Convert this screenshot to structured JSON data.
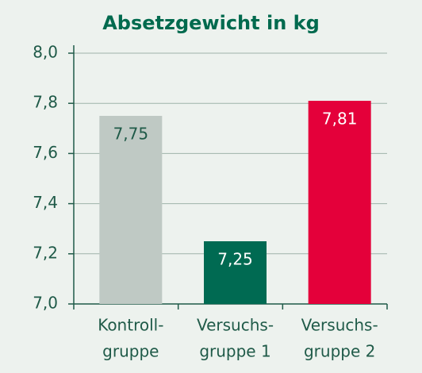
{
  "chart_data": {
    "type": "bar",
    "title": "Absetzgewicht in kg",
    "categories": [
      [
        "Kontroll-",
        "gruppe"
      ],
      [
        "Versuchs-",
        "gruppe 1"
      ],
      [
        "Versuchs-",
        "gruppe 2"
      ]
    ],
    "values": [
      7.75,
      7.25,
      7.81
    ],
    "value_labels": [
      "7,75",
      "7,25",
      "7,81"
    ],
    "colors": [
      "#bfc9c4",
      "#006a52",
      "#e4003a"
    ],
    "ylim": [
      7.0,
      8.0
    ],
    "yticks": [
      {
        "value": 7.0,
        "label": "7,0"
      },
      {
        "value": 7.2,
        "label": "7,2"
      },
      {
        "value": 7.4,
        "label": "7,4"
      },
      {
        "value": 7.6,
        "label": "7,6"
      },
      {
        "value": 7.8,
        "label": "7,8"
      },
      {
        "value": 8.0,
        "label": "8,0"
      }
    ],
    "grid": true
  }
}
